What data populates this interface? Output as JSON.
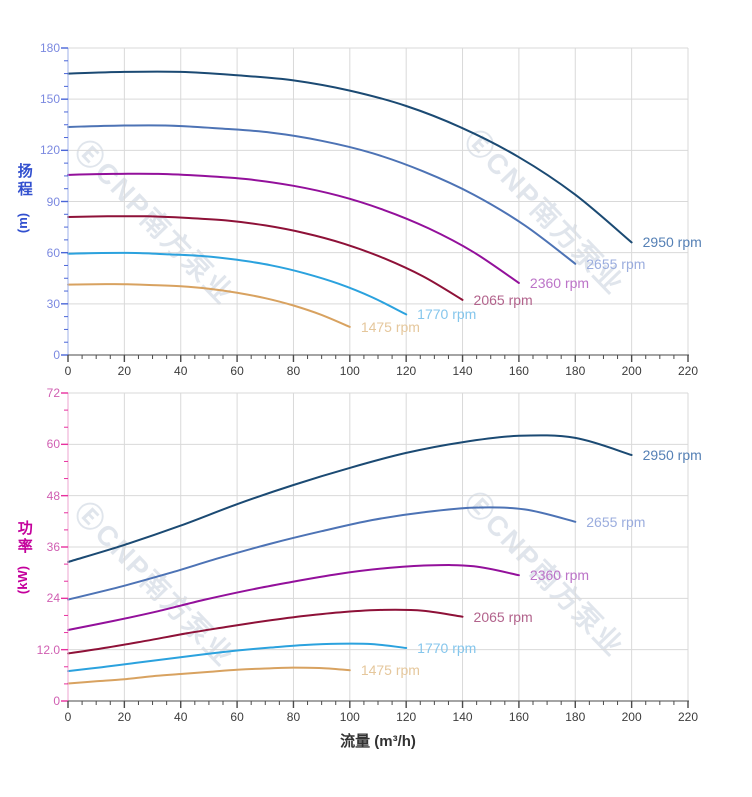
{
  "watermark": {
    "text": "ⒺCNP南方泵业"
  },
  "x_axis": {
    "title": "流量 (m³/h)",
    "min": 0,
    "max": 220,
    "major_ticks": [
      0,
      20,
      40,
      60,
      80,
      100,
      120,
      140,
      160,
      180,
      200,
      220
    ],
    "tick_labels": [
      "0",
      "20",
      "40",
      "60",
      "80",
      "100",
      "120",
      "140",
      "160",
      "180",
      "200",
      "220"
    ],
    "minor_step": 5,
    "axis_color": "#4a4a4a",
    "tick_label_color": "#3c3c3c",
    "title_color": "#333333"
  },
  "grid_color": "#d9d9d9",
  "chart_data": [
    {
      "type": "line",
      "name": "head-vs-flow",
      "xlabel": "流量 (m³/h)",
      "xlim": [
        0,
        220
      ],
      "ylim": [
        0,
        180
      ],
      "grid": true,
      "legend_position": "curve-end-labels",
      "y_axis": {
        "title": "扬程",
        "unit": "(m)",
        "min": 0,
        "max": 180,
        "major_ticks": [
          0,
          30,
          60,
          90,
          120,
          150,
          180
        ],
        "tick_labels": [
          "0",
          "30",
          "60",
          "90",
          "120",
          "150",
          "180"
        ],
        "minor_step": 7.5,
        "line_color": "#9fb0e8",
        "tick_color": "#4a66d8",
        "tick_label_color": "#7b89e0",
        "title_color": "#3250cf"
      },
      "series": [
        {
          "name": "2950 rpm",
          "color": "#1b4a73",
          "label_color": "#5580b5",
          "x": [
            0,
            20,
            40,
            60,
            80,
            100,
            120,
            140,
            160,
            180,
            200
          ],
          "y": [
            165,
            166,
            166,
            164,
            161,
            155,
            146,
            133,
            116,
            94,
            66
          ]
        },
        {
          "name": "2655 rpm",
          "color": "#4d73b5",
          "label_color": "#9badde",
          "x": [
            0,
            18,
            36,
            54,
            72,
            90,
            108,
            126,
            144,
            162,
            180
          ],
          "y": [
            133.7,
            134.5,
            134.5,
            132.8,
            130.4,
            125.6,
            118.3,
            107.7,
            94,
            76.1,
            53.5
          ]
        },
        {
          "name": "2360 rpm",
          "color": "#93109b",
          "label_color": "#bc74c8",
          "x": [
            0,
            16,
            32,
            48,
            64,
            80,
            96,
            112,
            128,
            144,
            160
          ],
          "y": [
            105.6,
            106.2,
            106.2,
            105,
            103,
            99.2,
            93.4,
            85.1,
            74.2,
            60.2,
            42.2
          ]
        },
        {
          "name": "2065 rpm",
          "color": "#8e1138",
          "label_color": "#b2638c",
          "x": [
            0,
            14,
            28,
            42,
            56,
            70,
            84,
            98,
            112,
            126,
            140
          ],
          "y": [
            80.9,
            81.3,
            81.3,
            80.4,
            78.9,
            76,
            71.5,
            65.2,
            56.8,
            46.1,
            32.3
          ]
        },
        {
          "name": "1770 rpm",
          "color": "#2ba2de",
          "label_color": "#85c6ec",
          "x": [
            0,
            12,
            24,
            36,
            48,
            60,
            72,
            84,
            96,
            108,
            120
          ],
          "y": [
            59.4,
            59.8,
            59.8,
            59,
            58,
            55.8,
            52.6,
            47.9,
            41.8,
            33.8,
            23.8
          ]
        },
        {
          "name": "1475 rpm",
          "color": "#d8a260",
          "label_color": "#e5c79c",
          "x": [
            0,
            10,
            20,
            30,
            40,
            50,
            60,
            70,
            80,
            90,
            100
          ],
          "y": [
            41.3,
            41.5,
            41.5,
            41,
            40.3,
            38.8,
            36.5,
            33.3,
            29,
            23.5,
            16.5
          ]
        }
      ]
    },
    {
      "type": "line",
      "name": "power-vs-flow",
      "xlabel": "流量 (m³/h)",
      "xlim": [
        0,
        220
      ],
      "ylim": [
        0,
        72
      ],
      "grid": true,
      "legend_position": "curve-end-labels",
      "y_axis": {
        "title": "功率",
        "unit": "(kW)",
        "min": 0,
        "max": 72,
        "major_ticks": [
          0,
          12,
          24,
          36,
          48,
          60,
          72
        ],
        "tick_labels": [
          "0",
          "12.0",
          "24",
          "36",
          "48",
          "60",
          "72"
        ],
        "minor_step": 4,
        "line_color": "#eda4d2",
        "tick_color": "#e8309e",
        "tick_label_color": "#d05fb2",
        "title_color": "#c4009c"
      },
      "series": [
        {
          "name": "2950 rpm",
          "color": "#1b4a73",
          "label_color": "#5580b5",
          "x": [
            0,
            20,
            40,
            60,
            80,
            100,
            120,
            140,
            160,
            180,
            200
          ],
          "y": [
            32.5,
            36.5,
            41,
            46,
            50.5,
            54.5,
            58,
            60.5,
            62,
            61.5,
            57.5
          ]
        },
        {
          "name": "2655 rpm",
          "color": "#4d73b5",
          "label_color": "#9badde",
          "x": [
            0,
            18,
            36,
            54,
            72,
            90,
            108,
            126,
            144,
            162,
            180
          ],
          "y": [
            23.7,
            26.6,
            29.9,
            33.5,
            36.8,
            39.7,
            42.3,
            44.1,
            45.2,
            44.8,
            41.9
          ]
        },
        {
          "name": "2360 rpm",
          "color": "#93109b",
          "label_color": "#bc74c8",
          "x": [
            0,
            16,
            32,
            48,
            64,
            80,
            96,
            112,
            128,
            144,
            160
          ],
          "y": [
            16.6,
            18.7,
            21,
            23.6,
            25.9,
            27.9,
            29.7,
            31,
            31.7,
            31.5,
            29.4
          ]
        },
        {
          "name": "2065 rpm",
          "color": "#8e1138",
          "label_color": "#b2638c",
          "x": [
            0,
            14,
            28,
            42,
            56,
            70,
            84,
            98,
            112,
            126,
            140
          ],
          "y": [
            11.1,
            12.5,
            14.1,
            15.8,
            17.3,
            18.7,
            19.9,
            20.8,
            21.3,
            21.1,
            19.7
          ]
        },
        {
          "name": "1770 rpm",
          "color": "#2ba2de",
          "label_color": "#85c6ec",
          "x": [
            0,
            12,
            24,
            36,
            48,
            60,
            72,
            84,
            96,
            108,
            120
          ],
          "y": [
            7,
            7.9,
            8.9,
            9.9,
            10.9,
            11.8,
            12.5,
            13.1,
            13.4,
            13.3,
            12.4
          ]
        },
        {
          "name": "1475 rpm",
          "color": "#d8a260",
          "label_color": "#e5c79c",
          "x": [
            0,
            10,
            20,
            30,
            40,
            50,
            60,
            70,
            80,
            90,
            100
          ],
          "y": [
            4.1,
            4.6,
            5.1,
            5.8,
            6.3,
            6.8,
            7.3,
            7.6,
            7.8,
            7.7,
            7.2
          ]
        }
      ]
    }
  ]
}
